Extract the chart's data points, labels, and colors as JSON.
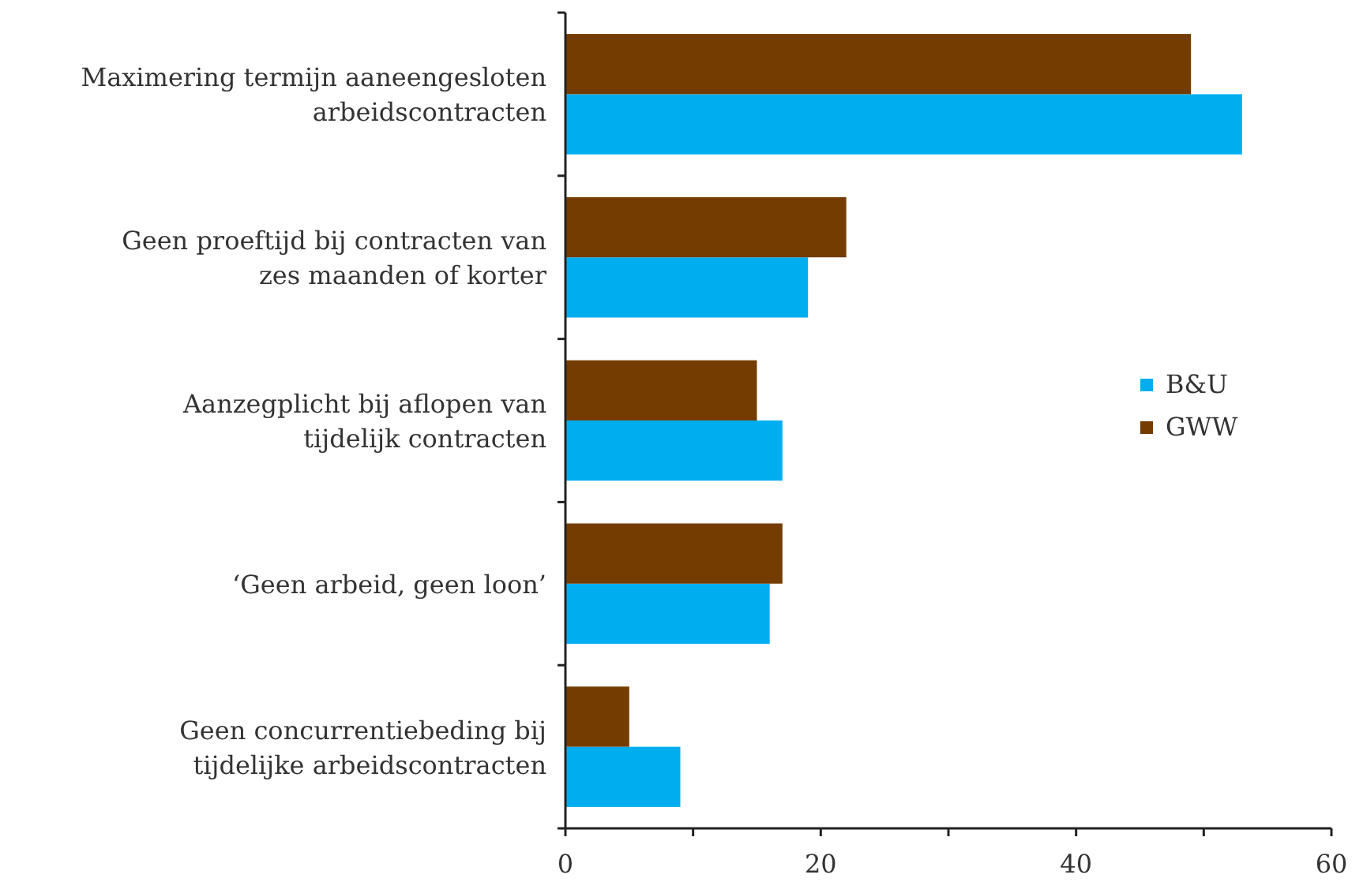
{
  "chart_data": {
    "type": "bar",
    "orientation": "horizontal",
    "categories": [
      "Maximering termijn aaneengesloten\narbeidscontracten",
      "Geen proeftijd bij contracten van\nzes maanden of korter",
      "Aanzegplicht bij aflopen van\ntijdelijk contracten",
      "‘Geen arbeid, geen loon’",
      "Geen concurrentiebeding bij\ntijdelijke arbeidscontracten"
    ],
    "series": [
      {
        "name": "B&U",
        "color": "#00aeef",
        "values": [
          53,
          19,
          17,
          16,
          9
        ]
      },
      {
        "name": "GWW",
        "color": "#743c00",
        "values": [
          49,
          22,
          15,
          17,
          5
        ]
      }
    ],
    "xlim": [
      0,
      60
    ],
    "xticks": [
      0,
      {
        "value": 10,
        "label": null
      },
      20,
      {
        "value": 30,
        "label": null
      },
      40,
      {
        "value": 50,
        "label": null
      },
      60
    ],
    "grid": false,
    "legend": "right"
  }
}
